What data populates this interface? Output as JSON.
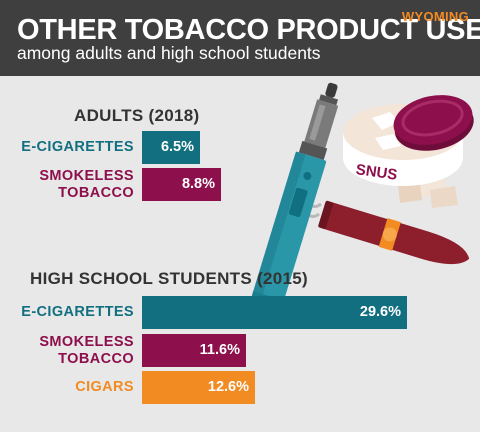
{
  "header": {
    "title": "OTHER TOBACCO PRODUCT USE",
    "subtitle": "among adults and high school students",
    "state": "WYOMING"
  },
  "illustration": {
    "snus_label": "SNUS",
    "icons": [
      "e-cigarette-icon",
      "snus-tin-icon",
      "cigar-icon"
    ]
  },
  "colors": {
    "teal": "#126f80",
    "maroon": "#8d0f4b",
    "orange": "#f28b22",
    "header_bg": "#3f3f3f",
    "background": "#e8e8e8"
  },
  "chart_data": [
    {
      "type": "bar",
      "orientation": "horizontal",
      "title": "ADULTS (2018)",
      "categories": [
        "E-CIGARETTES",
        "SMOKELESS TOBACCO"
      ],
      "category_lines": [
        [
          "E-CIGARETTES"
        ],
        [
          "SMOKELESS",
          "TOBACCO"
        ]
      ],
      "values": [
        6.5,
        8.8
      ],
      "value_labels": [
        "6.5%",
        "8.8%"
      ],
      "colors": [
        "#126f80",
        "#8d0f4b"
      ]
    },
    {
      "type": "bar",
      "orientation": "horizontal",
      "title": "HIGH SCHOOL STUDENTS (2015)",
      "categories": [
        "E-CIGARETTES",
        "SMOKELESS TOBACCO",
        "CIGARS"
      ],
      "category_lines": [
        [
          "E-CIGARETTES"
        ],
        [
          "SMOKELESS",
          "TOBACCO"
        ],
        [
          "CIGARS"
        ]
      ],
      "values": [
        29.6,
        11.6,
        12.6
      ],
      "value_labels": [
        "29.6%",
        "11.6%",
        "12.6%"
      ],
      "colors": [
        "#126f80",
        "#8d0f4b",
        "#f28b22"
      ]
    }
  ]
}
